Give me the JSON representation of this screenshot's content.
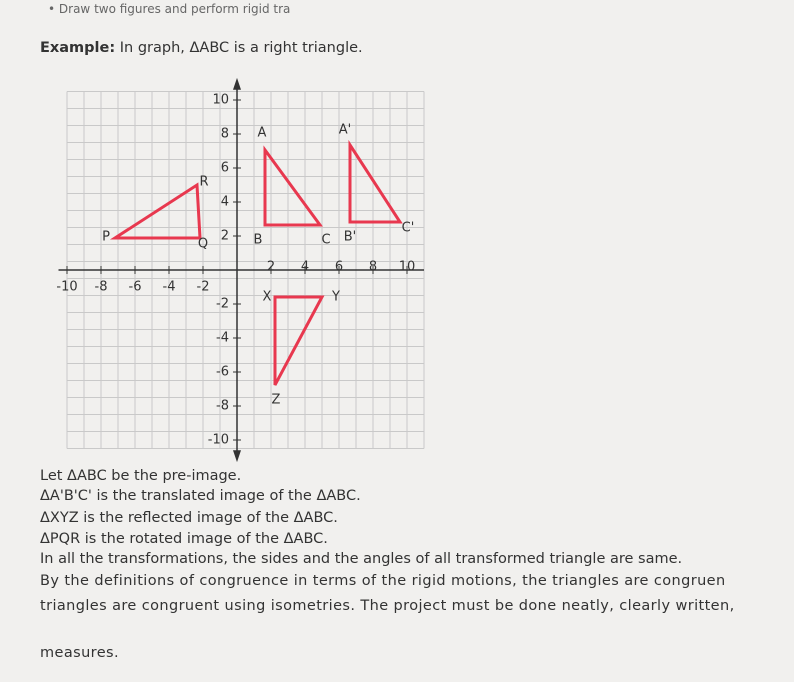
{
  "bullet": "Draw two figures and perform rigid tra",
  "example": {
    "label": "Example:",
    "text": "In graph, ΔABC is a right triangle."
  },
  "graph": {
    "x_ticks": [
      -10,
      -8,
      -6,
      -4,
      -2,
      2,
      4,
      6,
      8,
      10
    ],
    "y_ticks": [
      10,
      8,
      6,
      4,
      2,
      -2,
      -4,
      -6,
      -8,
      -10
    ],
    "point_labels": [
      "A",
      "B",
      "C",
      "A'",
      "B'",
      "C'",
      "X",
      "Y",
      "Z",
      "P",
      "Q",
      "R"
    ]
  },
  "paragraphs": [
    "Let ΔABC be the pre-image.",
    "ΔA'B'C' is the translated image of the ΔABC.",
    "ΔXYZ is the reflected image of the ΔABC.",
    "ΔPQR is the rotated image of the ΔABC.",
    "In all the transformations, the sides and the angles of all transformed triangle are same.",
    "By the definitions of congruence in terms of the rigid motions, the triangles are congruen",
    "triangles are congruent using isometries. The project must be done neatly, clearly written,",
    "measures."
  ]
}
